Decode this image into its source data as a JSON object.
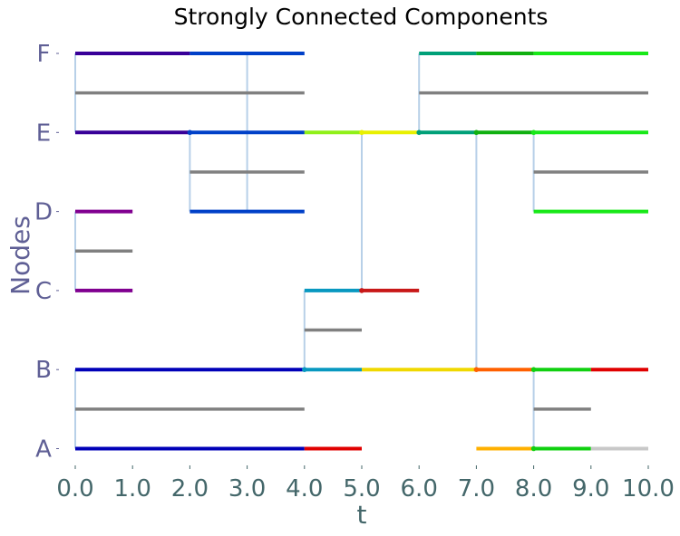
{
  "chart_data": {
    "type": "timeline",
    "title": "Strongly Connected Components",
    "xlabel": "t",
    "ylabel": "Nodes",
    "xlim": [
      0,
      10
    ],
    "x_ticks": [
      "0.0",
      "1.0",
      "2.0",
      "3.0",
      "4.0",
      "5.0",
      "6.0",
      "7.0",
      "8.0",
      "9.0",
      "10.0"
    ],
    "nodes": [
      "A",
      "B",
      "C",
      "D",
      "E",
      "F"
    ],
    "grid": false,
    "segments": [
      {
        "node": "A",
        "start": 0,
        "end": 4,
        "color": "#0000b8"
      },
      {
        "node": "A",
        "start": 4,
        "end": 5,
        "color": "#e00000"
      },
      {
        "node": "A",
        "start": 7,
        "end": 8,
        "color": "#ffb000"
      },
      {
        "node": "A",
        "start": 8,
        "end": 9,
        "color": "#10d010"
      },
      {
        "node": "A",
        "start": 9,
        "end": 10,
        "color": "#c8c8c8"
      },
      {
        "node": "B",
        "start": 0,
        "end": 4,
        "color": "#0000b8"
      },
      {
        "node": "B",
        "start": 4,
        "end": 5,
        "color": "#0898c0"
      },
      {
        "node": "B",
        "start": 5,
        "end": 7,
        "color": "#f0d800"
      },
      {
        "node": "B",
        "start": 7,
        "end": 8,
        "color": "#ff6000"
      },
      {
        "node": "B",
        "start": 8,
        "end": 9,
        "color": "#10d010"
      },
      {
        "node": "B",
        "start": 9,
        "end": 10,
        "color": "#e00000"
      },
      {
        "node": "C",
        "start": 0,
        "end": 1,
        "color": "#800090"
      },
      {
        "node": "C",
        "start": 4,
        "end": 5,
        "color": "#0898c0"
      },
      {
        "node": "C",
        "start": 5,
        "end": 6,
        "color": "#c81818"
      },
      {
        "node": "D",
        "start": 0,
        "end": 1,
        "color": "#800090"
      },
      {
        "node": "D",
        "start": 2,
        "end": 4,
        "color": "#0040c8"
      },
      {
        "node": "D",
        "start": 8,
        "end": 10,
        "color": "#18e818"
      },
      {
        "node": "E",
        "start": 0,
        "end": 2,
        "color": "#380098"
      },
      {
        "node": "E",
        "start": 2,
        "end": 4,
        "color": "#0040c8"
      },
      {
        "node": "E",
        "start": 4,
        "end": 5,
        "color": "#90f018"
      },
      {
        "node": "E",
        "start": 5,
        "end": 6,
        "color": "#e8f000"
      },
      {
        "node": "E",
        "start": 6,
        "end": 7,
        "color": "#00a078"
      },
      {
        "node": "E",
        "start": 7,
        "end": 8,
        "color": "#10b010"
      },
      {
        "node": "E",
        "start": 8,
        "end": 10,
        "color": "#18e818"
      },
      {
        "node": "F",
        "start": 0,
        "end": 2,
        "color": "#380098"
      },
      {
        "node": "F",
        "start": 2,
        "end": 4,
        "color": "#0040c8"
      },
      {
        "node": "F",
        "start": 6,
        "end": 7,
        "color": "#00a078"
      },
      {
        "node": "F",
        "start": 7,
        "end": 8,
        "color": "#10b010"
      },
      {
        "node": "F",
        "start": 8,
        "end": 10,
        "color": "#18e818"
      }
    ],
    "links": [
      {
        "between": [
          "A",
          "B"
        ],
        "start": 0,
        "end": 4,
        "connector_x": 0
      },
      {
        "between": [
          "A",
          "B"
        ],
        "start": 8,
        "end": 9,
        "connector_x": 8
      },
      {
        "between": [
          "B",
          "C"
        ],
        "start": 4,
        "end": 5,
        "connector_x": 4
      },
      {
        "between": [
          "C",
          "D"
        ],
        "start": 0,
        "end": 1,
        "connector_x": 0
      },
      {
        "between": [
          "D",
          "E"
        ],
        "start": 2,
        "end": 4,
        "connector_x": 2
      },
      {
        "between": [
          "D",
          "E"
        ],
        "start": 8,
        "end": 10,
        "connector_x": 8
      },
      {
        "between": [
          "D",
          "F"
        ],
        "start": 3,
        "end": 4,
        "connector_x": 3
      },
      {
        "between": [
          "E",
          "F"
        ],
        "start": 0,
        "end": 4,
        "connector_x": 0
      },
      {
        "between": [
          "E",
          "F"
        ],
        "start": 6,
        "end": 10,
        "connector_x": 6
      }
    ],
    "cross_links": [
      {
        "from": "C",
        "to": "E",
        "t": 5
      },
      {
        "from": "B",
        "to": "E",
        "t": 7
      }
    ],
    "colors": {
      "link_bar": "#808080",
      "connector": "#b8d0e8"
    }
  }
}
